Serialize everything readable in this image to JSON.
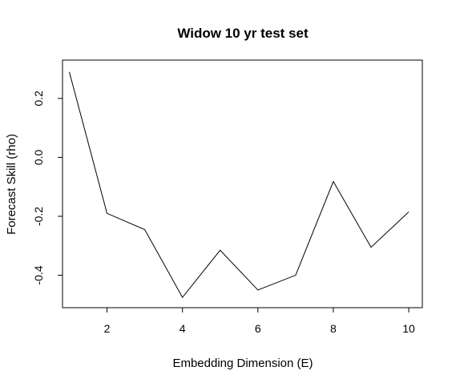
{
  "chart_data": {
    "type": "line",
    "title": "Widow 10 yr test set",
    "xlabel": "Embedding Dimension (E)",
    "ylabel": "Forecast Skill (rho)",
    "x": [
      1,
      2,
      3,
      4,
      5,
      6,
      7,
      8,
      9,
      10
    ],
    "series": [
      {
        "values": [
          0.29,
          -0.19,
          -0.245,
          -0.475,
          -0.315,
          -0.45,
          -0.4,
          -0.082,
          -0.305,
          -0.185
        ]
      }
    ],
    "xlim": [
      0.82,
      10.36
    ],
    "ylim": [
      -0.51,
      0.33
    ],
    "x_ticks": [
      2,
      4,
      6,
      8,
      10
    ],
    "y_ticks": [
      -0.4,
      -0.2,
      0.0,
      0.2
    ],
    "x_tick_labels": [
      "2",
      "4",
      "6",
      "8",
      "10"
    ],
    "y_tick_labels": [
      "-0.4",
      "-0.2",
      "0.0",
      "0.2"
    ],
    "grid": false,
    "line_color": "#000000"
  }
}
